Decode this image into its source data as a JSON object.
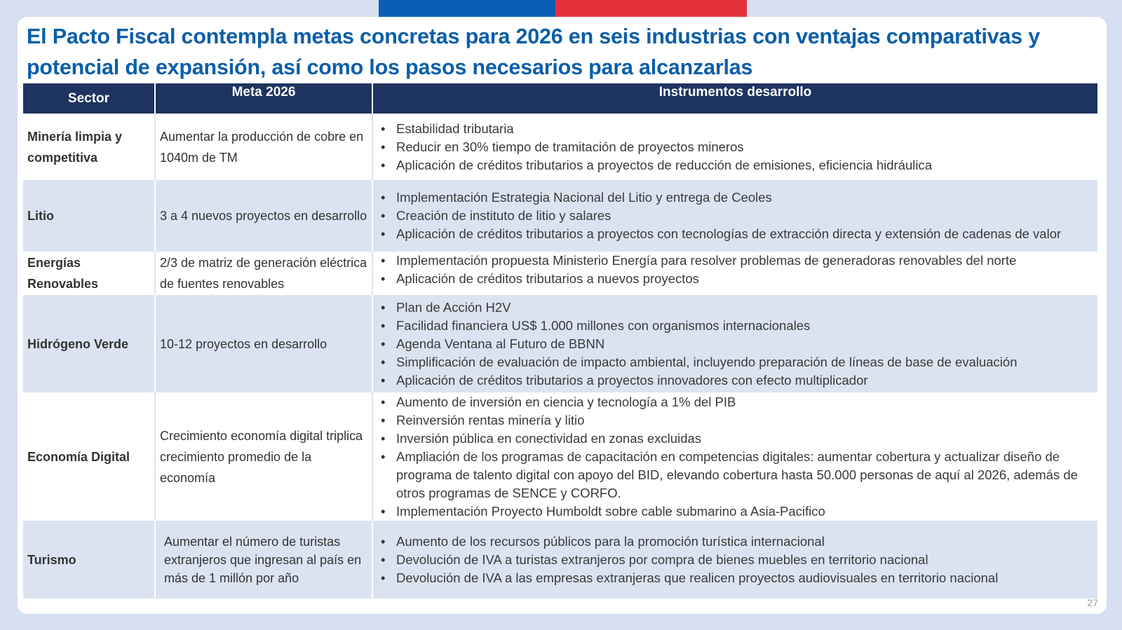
{
  "title": "El Pacto Fiscal contempla metas concretas para 2026 en seis industrias con ventajas comparativas y potencial de expansión, así como los pasos necesarios para alcanzarlas",
  "colors": {
    "accent_blue": "#0b5ea8",
    "header_navy": "#1d3461",
    "flag_blue": "#0a5fb4",
    "flag_red": "#e5323a",
    "row_alt": "#dbe3f2"
  },
  "table": {
    "headers": [
      "Sector",
      "Meta 2026",
      "Instrumentos desarrollo"
    ],
    "rows": [
      {
        "sector": "Minería limpia y competitiva",
        "meta": "Aumentar la producción de cobre en 1040m de TM",
        "instrumentos": [
          "Estabilidad tributaria",
          "Reducir en 30% tiempo de tramitación de proyectos mineros",
          "Aplicación de créditos tributarios a proyectos de reducción de emisiones, eficiencia hidráulica"
        ]
      },
      {
        "sector": "Litio",
        "meta": "3 a 4 nuevos proyectos en desarrollo",
        "instrumentos": [
          "Implementación Estrategia Nacional del Litio y entrega de Ceoles",
          "Creación de instituto de litio y salares",
          "Aplicación de créditos tributarios a proyectos con tecnologías de extracción directa y extensión de cadenas de valor"
        ]
      },
      {
        "sector": "Energías Renovables",
        "meta": "2/3 de matriz de generación eléctrica de fuentes renovables",
        "instrumentos": [
          "Implementación propuesta Ministerio Energía para resolver problemas de generadoras renovables del norte",
          "Aplicación de créditos tributarios a nuevos proyectos"
        ]
      },
      {
        "sector": "Hidrógeno Verde",
        "meta": "10-12 proyectos en desarrollo",
        "instrumentos": [
          "Plan de Acción H2V",
          "Facilidad financiera US$ 1.000 millones con organismos internacionales",
          "Agenda Ventana al Futuro de BBNN",
          "Simplificación de evaluación de impacto ambiental, incluyendo preparación de líneas de base de evaluación",
          "Aplicación de créditos tributarios a proyectos innovadores con efecto multiplicador"
        ]
      },
      {
        "sector": "Economía Digital",
        "meta": "Crecimiento economía digital triplica crecimiento promedio de la economía",
        "instrumentos": [
          "Aumento de inversión en ciencia y tecnología a 1% del PIB",
          "Reinversión rentas minería y litio",
          "Inversión pública en conectividad en zonas excluidas",
          "Ampliación de los programas de capacitación en competencias digitales: aumentar cobertura y actualizar diseño de programa de talento digital con apoyo del BID, elevando cobertura hasta 50.000 personas de aquí al 2026, además de otros programas de SENCE y CORFO.",
          "Implementación Proyecto Humboldt sobre cable submarino a Asia-Pacifico"
        ]
      },
      {
        "sector": "Turismo",
        "meta": "Aumentar el número de turistas extranjeros que ingresan al país en más de 1 millón por año",
        "instrumentos": [
          "Aumento de los recursos públicos para la promoción turística internacional",
          "Devolución de IVA a turistas extranjeros por compra de bienes muebles en territorio nacional",
          "Devolución de IVA a las empresas extranjeras que realicen proyectos audiovisuales en territorio nacional"
        ]
      }
    ]
  },
  "page_number": "27"
}
